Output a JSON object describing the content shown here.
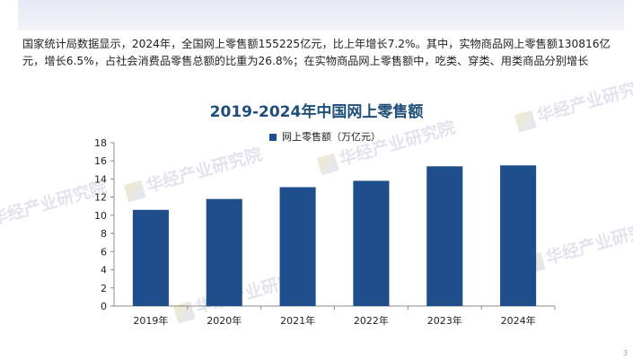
{
  "intro_text": "国家统计局数据显示，2024年，全国网上零售额155225亿元，比上年增长7.2%。其中，实物商品网上零售额130816亿元，增长6.5%，占社会消费品零售总额的比重为26.8%；在实物商品网上零售额中，吃类、穿类、用类商品分别增长",
  "watermark_text": "华经产业研究院",
  "page_number": "3",
  "chart_data": {
    "type": "bar",
    "title": "2019-2024年中国网上零售额",
    "categories": [
      "2019年",
      "2020年",
      "2021年",
      "2022年",
      "2023年",
      "2024年"
    ],
    "series": [
      {
        "name": "网上零售额（万亿元）",
        "values": [
          10.6,
          11.8,
          13.1,
          13.8,
          15.4,
          15.5
        ],
        "color": "#1f4e8c"
      }
    ],
    "ylim": [
      0,
      18
    ],
    "yticks": [
      0,
      2,
      4,
      6,
      8,
      10,
      12,
      14,
      16,
      18
    ],
    "grid": false,
    "legend_position": "top"
  }
}
